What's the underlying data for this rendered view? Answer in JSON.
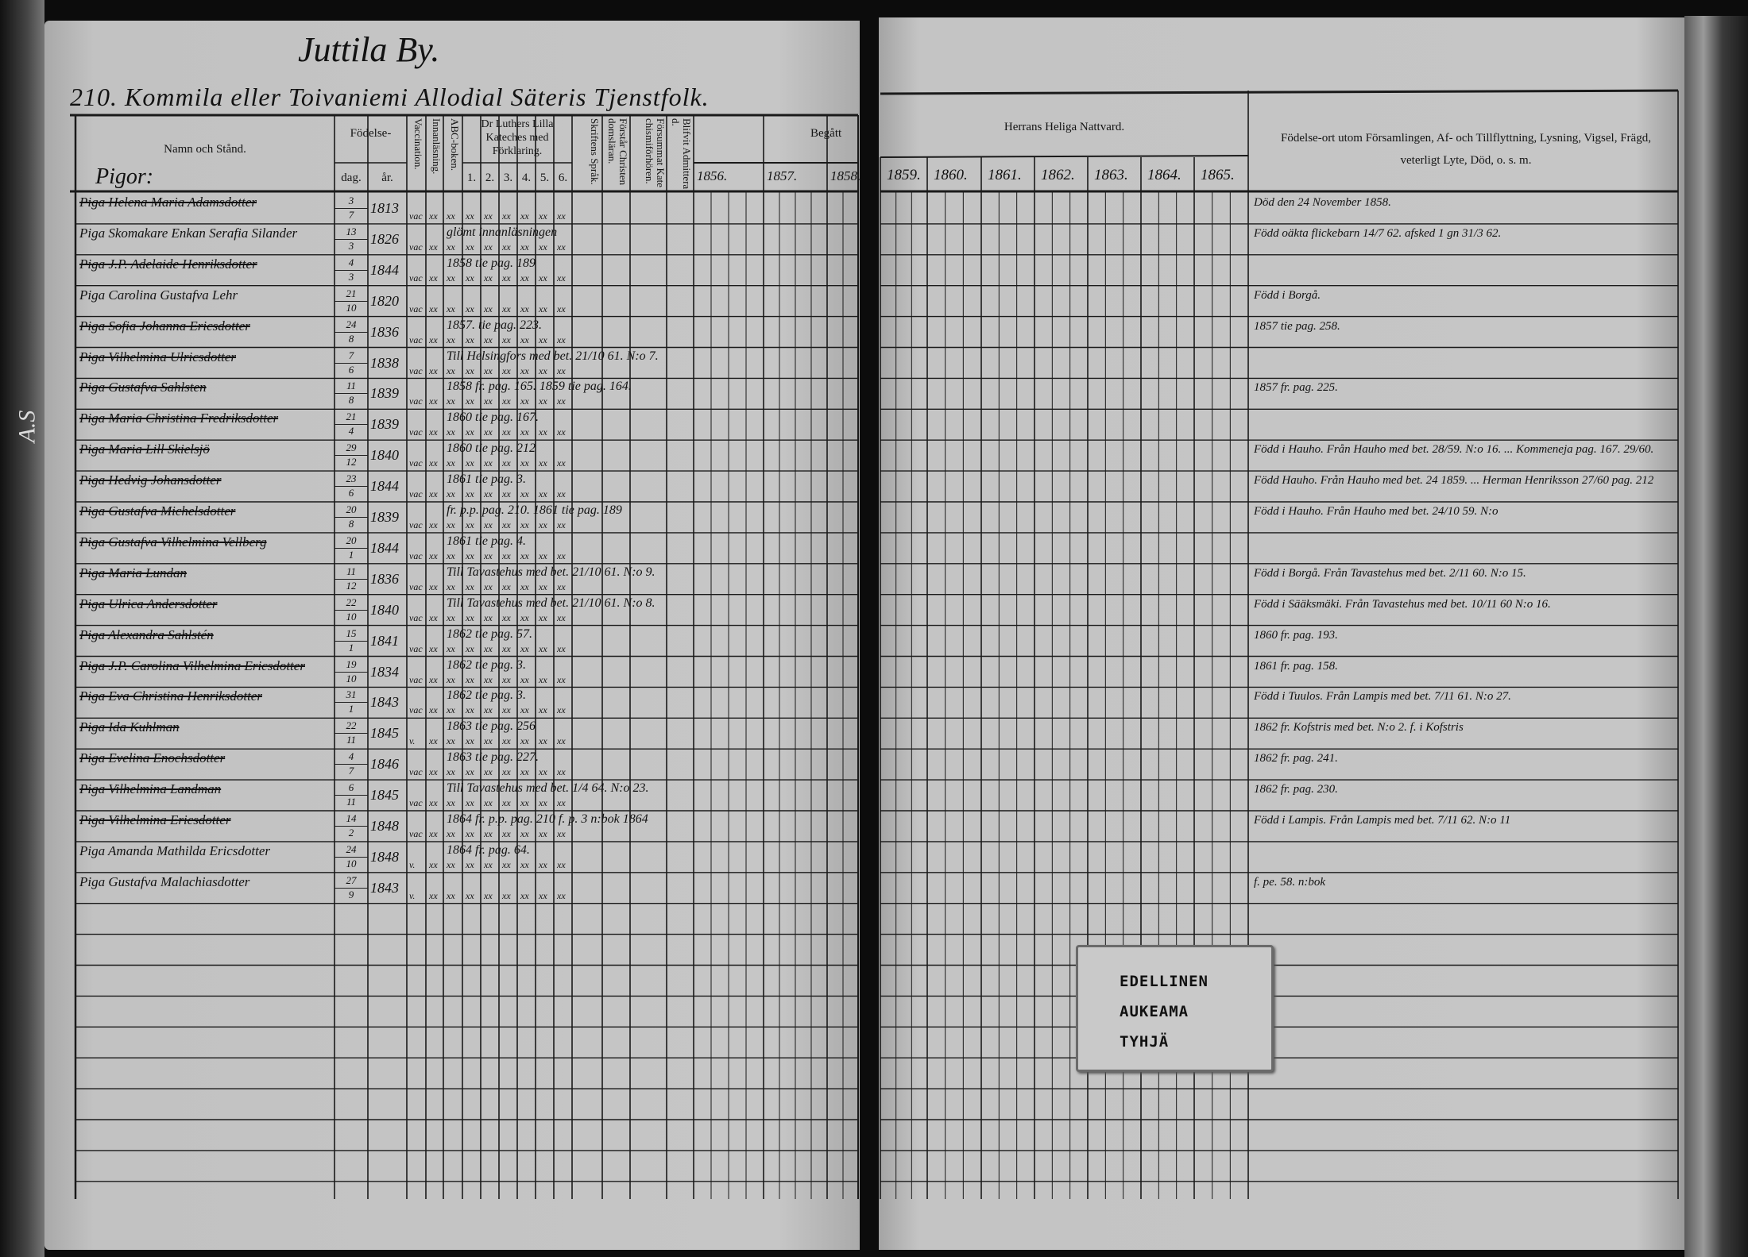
{
  "left_page": {
    "village_heading": "Juttila By.",
    "estate_heading": "210. Kommila eller Toivaniemi Allodial Säteris Tjenstfolk.",
    "margin_mark": "A.S",
    "headers": {
      "name": "Namn och Stånd.",
      "birth": "Födelse-",
      "birth_day": "dag.",
      "birth_year": "år.",
      "vaccination": "Vaccination.",
      "reading": "Innanläsning.",
      "abc": "ABC-boken.",
      "catechism": "Dr Luthers Lilla Kateches med Förklaring.",
      "catechism_parts": [
        "1.",
        "2.",
        "3.",
        "4.",
        "5.",
        "6."
      ],
      "scripture_language": "Skriftens Språk.",
      "understands": "Förstår Christendomsläran.",
      "missed": "Försummat Katechismiförhören.",
      "admitted": "Blifvit Admitterad.",
      "communion_left": "Begått",
      "years": [
        "1856.",
        "1857.",
        "1858."
      ]
    },
    "section_label": "Pigor:"
  },
  "rows": [
    {
      "name": "Piga Helena Maria Adamsdotter",
      "day": "3",
      "month": "7",
      "year": "1813",
      "vacc": "vac",
      "annotation": "",
      "note": "Död den 24 November 1858.",
      "struck": true
    },
    {
      "name": "Piga Skomakare Enkan Serafia Silander",
      "day": "13",
      "month": "3",
      "year": "1826",
      "vacc": "vac",
      "annotation": "glömt innanläsningen",
      "note": "Född oäkta flickebarn 14/7 62. afsked 1 gn 31/3 62.",
      "struck": false
    },
    {
      "name": "Piga J.P. Adelaide Henriksdotter",
      "day": "4",
      "month": "3",
      "year": "1844",
      "vacc": "vac",
      "annotation": "1858 tie pag. 189",
      "note": "",
      "struck": true
    },
    {
      "name": "Piga Carolina Gustafva Lehr",
      "day": "21",
      "month": "10",
      "year": "1820",
      "vacc": "vac",
      "annotation": "",
      "note": "Född i Borgå.",
      "struck": false
    },
    {
      "name": "Piga Sofia Johanna Ericsdotter",
      "day": "24",
      "month": "8",
      "year": "1836",
      "vacc": "vac",
      "annotation": "1857. tie pag. 223.",
      "note": "1857 tie pag. 258.",
      "struck": true
    },
    {
      "name": "Piga Vilhelmina Ulricsdotter",
      "day": "7",
      "month": "6",
      "year": "1838",
      "vacc": "vac",
      "annotation": "Till Helsingfors med bet. 21/10 61. N:o 7.",
      "note": "",
      "struck": true
    },
    {
      "name": "Piga Gustafva Sahlsten",
      "day": "11",
      "month": "8",
      "year": "1839",
      "vacc": "vac",
      "annotation": "1858 fr. pag. 165. 1859 tie pag. 164.",
      "note": "1857 fr. pag. 225.",
      "struck": true
    },
    {
      "name": "Piga Maria Christina Fredriksdotter",
      "day": "21",
      "month": "4",
      "year": "1839",
      "vacc": "vac",
      "annotation": "1860 tie pag. 167.",
      "note": "",
      "struck": true
    },
    {
      "name": "Piga Maria Lill Skielsjö",
      "day": "29",
      "month": "12",
      "year": "1840",
      "vacc": "vac",
      "annotation": "1860 tie pag. 212",
      "note": "Född i Hauho. Från Hauho med bet. 28/59. N:o 16. ... Kommeneja pag. 167. 29/60.",
      "struck": true
    },
    {
      "name": "Piga Hedvig Johansdotter",
      "day": "23",
      "month": "6",
      "year": "1844",
      "vacc": "vac",
      "annotation": "1861 tie pag. 3.",
      "note": "Född Hauho. Från Hauho med bet. 24 1859. ... Herman Henriksson 27/60 pag. 212",
      "struck": true
    },
    {
      "name": "Piga Gustafva Michelsdotter",
      "day": "20",
      "month": "8",
      "year": "1839",
      "vacc": "vac",
      "annotation": "fr. p.p. pag. 210.  1861 tie pag. 189",
      "note": "Född i Hauho. Från Hauho med bet. 24/10 59. N:o",
      "struck": true
    },
    {
      "name": "Piga Gustafva Vilhelmina Vellberg",
      "day": "20",
      "month": "1",
      "year": "1844",
      "vacc": "vac",
      "annotation": "1861 tie pag. 4.",
      "note": "",
      "struck": true
    },
    {
      "name": "Piga Maria Lundan",
      "day": "11",
      "month": "12",
      "year": "1836",
      "vacc": "vac",
      "annotation": "Till Tavastehus med bet. 21/10 61. N:o 9.",
      "note": "Född i Borgå. Från Tavastehus med bet. 2/11 60. N:o 15.",
      "struck": true
    },
    {
      "name": "Piga Ulrica Andersdotter",
      "day": "22",
      "month": "10",
      "year": "1840",
      "vacc": "vac",
      "annotation": "Till Tavastehus med bet. 21/10 61. N:o 8.",
      "note": "Född i Sääksmäki. Från Tavastehus med bet. 10/11 60 N:o 16.",
      "struck": true
    },
    {
      "name": "Piga Alexandra Sahlstén",
      "day": "15",
      "month": "1",
      "year": "1841",
      "vacc": "vac",
      "annotation": "1862 tie pag. 57.",
      "note": "1860 fr. pag. 193.",
      "struck": true
    },
    {
      "name": "Piga J.P. Carolina Vilhelmina Ericsdotter",
      "day": "19",
      "month": "10",
      "year": "1834",
      "vacc": "vac",
      "annotation": "1862 tie pag. 3.",
      "note": "1861 fr. pag. 158.",
      "struck": true
    },
    {
      "name": "Piga Eva Christina Henriksdotter",
      "day": "31",
      "month": "1",
      "year": "1843",
      "vacc": "vac",
      "annotation": "1862 tie pag. 3.",
      "note": "Född i Tuulos. Från Lampis med bet. 7/11 61. N:o 27.",
      "struck": true
    },
    {
      "name": "Piga Ida Kuhlman",
      "day": "22",
      "month": "11",
      "year": "1845",
      "vacc": "v.",
      "annotation": "1863 tie pag. 256",
      "note": "1862 fr. Kofstris med bet. N:o 2. f. i Kofstris",
      "struck": true
    },
    {
      "name": "Piga Evelina Enochsdotter",
      "day": "4",
      "month": "7",
      "year": "1846",
      "vacc": "vac",
      "annotation": "1863 tie pag. 227.",
      "note": "1862 fr. pag. 241.",
      "struck": true
    },
    {
      "name": "Piga Vilhelmina Landman",
      "day": "6",
      "month": "11",
      "year": "1845",
      "vacc": "vac",
      "annotation": "Till Tavastehus med bet. 1/4 64. N:o 23.",
      "note": "1862 fr. pag. 230.",
      "struck": true
    },
    {
      "name": "Piga Vilhelmina Ericsdotter",
      "day": "14",
      "month": "2",
      "year": "1848",
      "vacc": "vac",
      "annotation": "1864 fr. p.p. pag. 210   f. p. 3 n:bok 1864",
      "note": "Född i Lampis. Från Lampis med bet. 7/11 62. N:o 11",
      "struck": true
    },
    {
      "name": "Piga Amanda Mathilda Ericsdotter",
      "day": "24",
      "month": "10",
      "year": "1848",
      "vacc": "v.",
      "annotation": "1864 fr. pag. 64.",
      "note": "",
      "struck": false
    },
    {
      "name": "Piga Gustafva Malachiasdotter",
      "day": "27",
      "month": "9",
      "year": "1843",
      "vacc": "v.",
      "annotation": "",
      "note": "f. pe. 58. n:bok",
      "struck": false
    }
  ],
  "right_page": {
    "communion_header": "Herrans Heliga Nattvard.",
    "years": [
      "1859.",
      "1860.",
      "1861.",
      "1862.",
      "1863.",
      "1864.",
      "1865."
    ],
    "notes_header": "Födelse-ort utom Församlingen, Af- och Tillflyttning, Lysning, Vigsel, Frägd, veterligt Lyte, Död, o. s. m."
  },
  "label_card": {
    "lines": [
      "EDELLINEN",
      "AUKEAMA",
      "TYHJÄ"
    ]
  }
}
